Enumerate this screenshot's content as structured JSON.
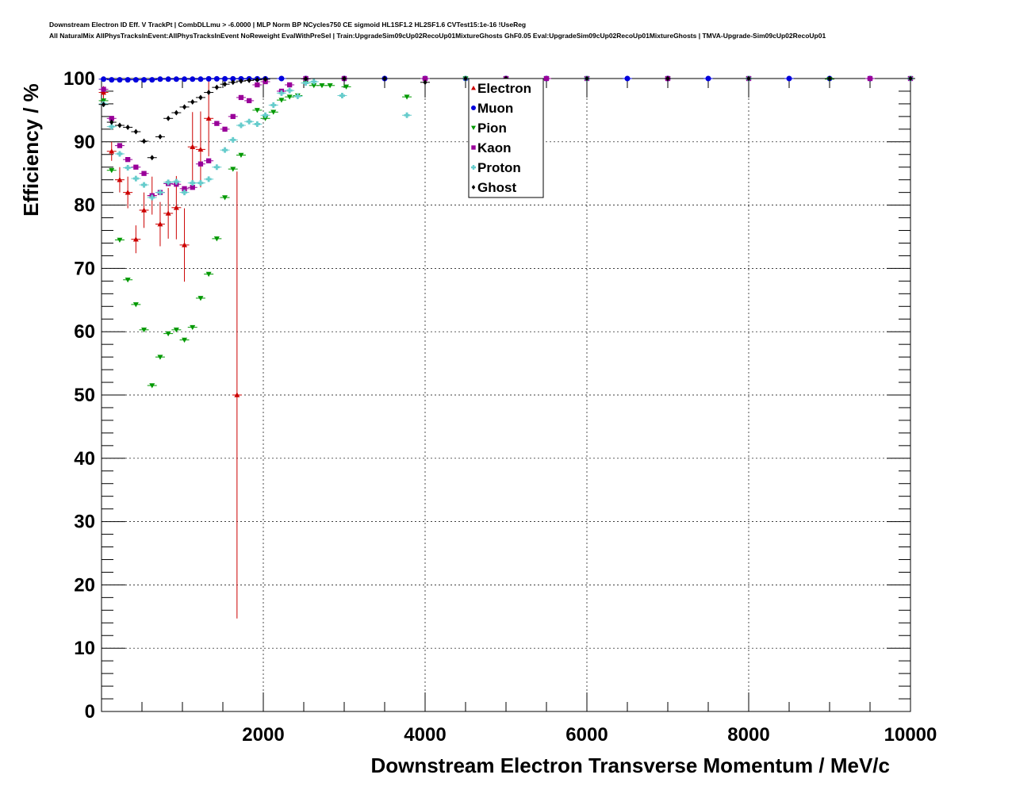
{
  "header": {
    "title_line1": "Downstream Electron ID Eff. V TrackPt | CombDLLmu > -6.0000 | MLP Norm BP NCycles750 CE sigmoid HL1SF1.2 HL2SF1.6 CVTest15:1e-16 !UseReg",
    "title_line2": "All NaturalMix AllPhysTracksInEvent:AllPhysTracksInEvent NoReweight EvalWithPreSel | Train:UpgradeSim09cUp02RecoUp01MixtureGhosts GhF0.05 Eval:UpgradeSim09cUp02RecoUp01MixtureGhosts | TMVA-Upgrade-Sim09cUp02RecoUp01"
  },
  "chart_data": {
    "type": "scatter",
    "xlabel": "Downstream Electron Transverse Momentum / MeV/c",
    "ylabel": "Efficiency / %",
    "xlim": [
      0,
      10000
    ],
    "ylim": [
      0,
      100
    ],
    "xticks": [
      2000,
      4000,
      6000,
      8000,
      10000
    ],
    "yticks": [
      0,
      10,
      20,
      30,
      40,
      50,
      60,
      70,
      80,
      90,
      100
    ],
    "grid": true,
    "legend_position": "top-center",
    "series": [
      {
        "name": "Electron",
        "color": "#cc0000",
        "marker": "triangle-up",
        "points": [
          [
            25,
            97.8,
            1.0
          ],
          [
            125,
            88.5,
            1.5
          ],
          [
            225,
            84,
            2
          ],
          [
            325,
            82,
            2.5
          ],
          [
            425,
            74.6,
            2.2
          ],
          [
            525,
            79.2,
            2.8
          ],
          [
            625,
            81.5,
            3
          ],
          [
            725,
            77,
            3.5
          ],
          [
            825,
            78.7,
            4
          ],
          [
            925,
            79.6,
            5
          ],
          [
            1025,
            73.7,
            5.8
          ],
          [
            1125,
            89.2,
            5.5
          ],
          [
            1225,
            88.8,
            6
          ],
          [
            1325,
            93.7,
            6
          ],
          [
            1675,
            50,
            35.3
          ]
        ]
      },
      {
        "name": "Muon",
        "color": "#0000dd",
        "marker": "circle",
        "points": [
          [
            25,
            99.9
          ],
          [
            125,
            99.8
          ],
          [
            225,
            99.8
          ],
          [
            325,
            99.8
          ],
          [
            425,
            99.8
          ],
          [
            525,
            99.8
          ],
          [
            625,
            99.8
          ],
          [
            725,
            99.9
          ],
          [
            825,
            99.9
          ],
          [
            925,
            99.9
          ],
          [
            1025,
            99.9
          ],
          [
            1125,
            99.9
          ],
          [
            1225,
            99.9
          ],
          [
            1325,
            99.95
          ],
          [
            1425,
            99.95
          ],
          [
            1525,
            99.95
          ],
          [
            1625,
            99.95
          ],
          [
            1725,
            99.95
          ],
          [
            1825,
            99.95
          ],
          [
            1925,
            99.95
          ],
          [
            2025,
            99.95
          ],
          [
            2225,
            100
          ],
          [
            2525,
            100
          ],
          [
            3000,
            100
          ],
          [
            3500,
            100
          ],
          [
            4000,
            100
          ],
          [
            4500,
            100
          ],
          [
            5000,
            100
          ],
          [
            5500,
            100
          ],
          [
            6000,
            100
          ],
          [
            6500,
            100
          ],
          [
            7000,
            100
          ],
          [
            7500,
            100
          ],
          [
            8000,
            100
          ],
          [
            8500,
            100
          ],
          [
            9000,
            100
          ],
          [
            9500,
            100
          ],
          [
            10000,
            100
          ]
        ]
      },
      {
        "name": "Pion",
        "color": "#009900",
        "marker": "triangle-down",
        "points": [
          [
            25,
            96.5
          ],
          [
            125,
            85.5
          ],
          [
            225,
            74.5
          ],
          [
            325,
            68.2
          ],
          [
            425,
            64.3
          ],
          [
            525,
            60.3
          ],
          [
            625,
            51.5
          ],
          [
            725,
            56
          ],
          [
            825,
            59.7
          ],
          [
            925,
            60.3
          ],
          [
            1025,
            58.7
          ],
          [
            1125,
            60.7
          ],
          [
            1225,
            65.3
          ],
          [
            1325,
            69.1
          ],
          [
            1425,
            74.7
          ],
          [
            1525,
            81.2
          ],
          [
            1625,
            85.7
          ],
          [
            1725,
            87.9
          ],
          [
            1925,
            95
          ],
          [
            2025,
            93.7
          ],
          [
            2125,
            94.7
          ],
          [
            2225,
            96.6
          ],
          [
            2325,
            97.1
          ],
          [
            2425,
            97.3
          ],
          [
            2525,
            99.3
          ],
          [
            2625,
            98.9
          ],
          [
            2725,
            98.9
          ],
          [
            2825,
            98.9
          ],
          [
            3025,
            98.7
          ],
          [
            3775,
            97.1
          ],
          [
            4500,
            100
          ],
          [
            5000,
            100
          ],
          [
            5500,
            100
          ],
          [
            6000,
            100
          ],
          [
            7000,
            100
          ],
          [
            8000,
            100
          ],
          [
            9000,
            99.9
          ],
          [
            10000,
            100
          ]
        ]
      },
      {
        "name": "Kaon",
        "color": "#990099",
        "marker": "square",
        "points": [
          [
            25,
            98.3
          ],
          [
            125,
            93.7
          ],
          [
            225,
            89.4
          ],
          [
            325,
            87.2
          ],
          [
            425,
            86
          ],
          [
            525,
            85
          ],
          [
            625,
            81.5
          ],
          [
            725,
            82
          ],
          [
            825,
            83.4
          ],
          [
            925,
            83.3
          ],
          [
            1025,
            82.6
          ],
          [
            1125,
            82.8
          ],
          [
            1225,
            86.5
          ],
          [
            1325,
            87
          ],
          [
            1425,
            92.9
          ],
          [
            1525,
            92
          ],
          [
            1625,
            94
          ],
          [
            1725,
            97
          ],
          [
            1825,
            96.5
          ],
          [
            1925,
            99
          ],
          [
            2025,
            99.5
          ],
          [
            2225,
            98
          ],
          [
            2325,
            99
          ],
          [
            2525,
            100
          ],
          [
            3000,
            100
          ],
          [
            4000,
            100
          ],
          [
            5000,
            100
          ],
          [
            5500,
            100
          ],
          [
            6000,
            100
          ],
          [
            7000,
            100
          ],
          [
            8000,
            100
          ],
          [
            9500,
            100
          ],
          [
            10000,
            100
          ]
        ]
      },
      {
        "name": "Proton",
        "color": "#66cccc",
        "marker": "cross",
        "points": [
          [
            25,
            96
          ],
          [
            125,
            92.4
          ],
          [
            225,
            88.1
          ],
          [
            325,
            85.9
          ],
          [
            425,
            84.2
          ],
          [
            525,
            83.2
          ],
          [
            625,
            81.2
          ],
          [
            725,
            82
          ],
          [
            825,
            83.6
          ],
          [
            925,
            83.7
          ],
          [
            1025,
            82
          ],
          [
            1125,
            83.5
          ],
          [
            1225,
            83.5
          ],
          [
            1325,
            84.1
          ],
          [
            1425,
            86
          ],
          [
            1525,
            88.7
          ],
          [
            1625,
            90.3
          ],
          [
            1725,
            92.6
          ],
          [
            1825,
            93.2
          ],
          [
            1925,
            92.8
          ],
          [
            2025,
            94.2
          ],
          [
            2125,
            95.8
          ],
          [
            2225,
            97.7
          ],
          [
            2325,
            98.1
          ],
          [
            2425,
            97.2
          ],
          [
            2525,
            99.3
          ],
          [
            2625,
            99.5
          ],
          [
            2975,
            97.3
          ],
          [
            3775,
            94.2
          ],
          [
            4500,
            100
          ],
          [
            6000,
            100
          ],
          [
            8000,
            100
          ],
          [
            10000,
            100
          ]
        ]
      },
      {
        "name": "Ghost",
        "color": "#000000",
        "marker": "diamond",
        "points": [
          [
            25,
            95.9
          ],
          [
            125,
            93.1
          ],
          [
            225,
            92.6
          ],
          [
            325,
            92.3
          ],
          [
            425,
            91.6
          ],
          [
            525,
            90.1
          ],
          [
            625,
            87.5
          ],
          [
            725,
            90.8
          ],
          [
            825,
            93.7
          ],
          [
            925,
            94.6
          ],
          [
            1025,
            95.5
          ],
          [
            1125,
            96.3
          ],
          [
            1225,
            97
          ],
          [
            1325,
            97.8
          ],
          [
            1425,
            98.6
          ],
          [
            1525,
            99.1
          ],
          [
            1625,
            99.4
          ],
          [
            1725,
            99.6
          ],
          [
            1825,
            99.7
          ],
          [
            1925,
            99.8
          ],
          [
            2025,
            99.9
          ],
          [
            2525,
            99.95
          ],
          [
            3000,
            100
          ],
          [
            3500,
            100
          ],
          [
            4000,
            99.4
          ],
          [
            4500,
            100
          ],
          [
            5000,
            100
          ],
          [
            6000,
            100
          ],
          [
            7000,
            100
          ],
          [
            8000,
            100
          ],
          [
            9000,
            100
          ],
          [
            10000,
            100
          ]
        ]
      }
    ]
  }
}
